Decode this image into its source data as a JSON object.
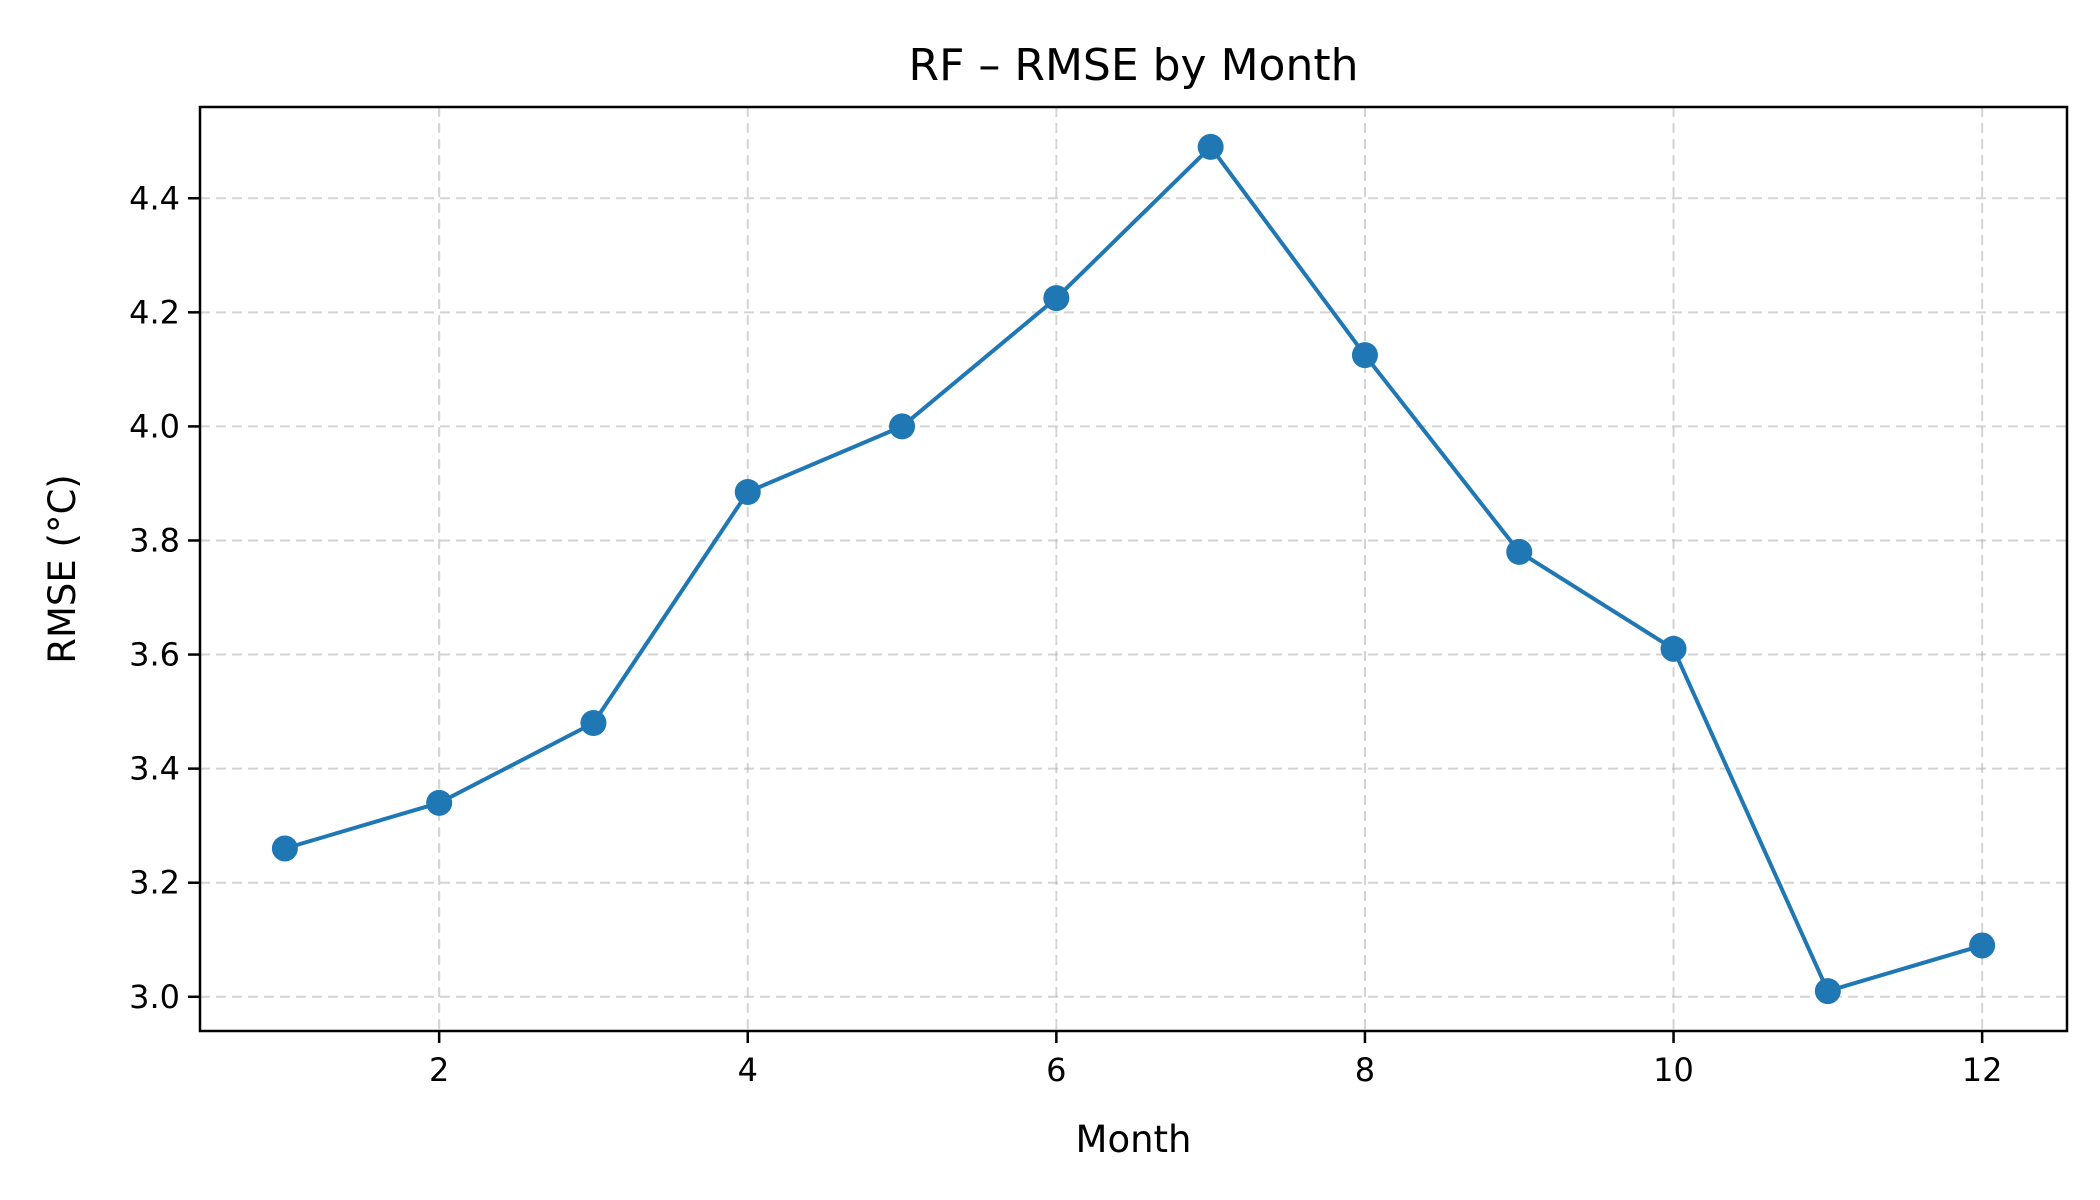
{
  "chart_data": {
    "type": "line",
    "title": "RF – RMSE by Month",
    "xlabel": "Month",
    "ylabel": "RMSE (°C)",
    "xlim": [
      0.45,
      12.55
    ],
    "ylim": [
      2.94,
      4.56
    ],
    "xticks": [
      2,
      4,
      6,
      8,
      10,
      12
    ],
    "xtick_labels": [
      "2",
      "4",
      "6",
      "8",
      "10",
      "12"
    ],
    "yticks": [
      3.0,
      3.2,
      3.4,
      3.6,
      3.8,
      4.0,
      4.2,
      4.4
    ],
    "ytick_labels": [
      "3.0",
      "3.2",
      "3.4",
      "3.6",
      "3.8",
      "4.0",
      "4.2",
      "4.4"
    ],
    "grid": true,
    "series": [
      {
        "color": "#1f77b4",
        "marker": "circle",
        "x": [
          1,
          2,
          3,
          4,
          5,
          6,
          7,
          8,
          9,
          10,
          11,
          12
        ],
        "y": [
          3.26,
          3.34,
          3.48,
          3.885,
          4.0,
          4.225,
          4.49,
          4.125,
          3.78,
          3.61,
          3.01,
          3.09
        ]
      }
    ]
  }
}
